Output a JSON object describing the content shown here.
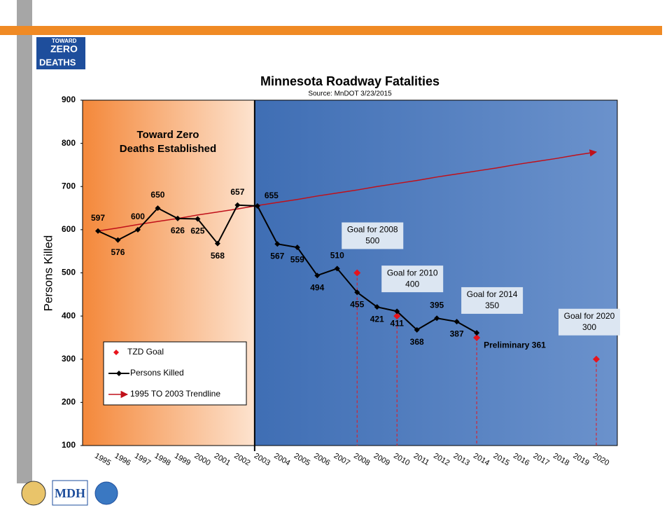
{
  "logo": {
    "line1": "TOWARD",
    "line2": "ZERO",
    "line3": "DEATHS"
  },
  "footer_logo": "MDH",
  "chart_data": {
    "type": "line",
    "title": "Minnesota Roadway Fatalities",
    "subtitle": "Source: MnDOT  3/23/2015",
    "y_label": "Persons Killed",
    "region_label": [
      "Toward Zero",
      "Deaths Established"
    ],
    "categories": [
      "1995",
      "1996",
      "1997",
      "1998",
      "1999",
      "2000",
      "2001",
      "2002",
      "2003",
      "2004",
      "2005",
      "2006",
      "2007",
      "2008",
      "2009",
      "2010",
      "2011",
      "2012",
      "2013",
      "2014",
      "2015",
      "2016",
      "2017",
      "2018",
      "2019",
      "2020"
    ],
    "series": [
      {
        "name": "TZD Goal",
        "color": "#e8141c",
        "kind": "goal",
        "values": [
          null,
          null,
          null,
          null,
          null,
          null,
          null,
          null,
          null,
          null,
          null,
          null,
          null,
          500,
          null,
          400,
          null,
          null,
          null,
          350,
          null,
          null,
          null,
          null,
          null,
          300
        ],
        "annotations": [
          null,
          null,
          null,
          null,
          null,
          null,
          null,
          null,
          null,
          null,
          null,
          null,
          null,
          "Goal for 2008",
          null,
          "Goal for 2010",
          null,
          null,
          null,
          "Goal for 2014",
          null,
          null,
          null,
          null,
          null,
          "Goal for 2020"
        ]
      },
      {
        "name": "Persons Killed",
        "color": "#000000",
        "kind": "line",
        "values": [
          597,
          576,
          600,
          650,
          626,
          625,
          568,
          657,
          655,
          567,
          559,
          494,
          510,
          455,
          421,
          411,
          368,
          395,
          387,
          361,
          null,
          null,
          null,
          null,
          null,
          null
        ],
        "value_labels": [
          "597",
          "576",
          "600",
          "650",
          "626",
          "625",
          "568",
          "657",
          "655",
          "567",
          "559",
          "494",
          "510",
          "455",
          "421",
          "411",
          "368",
          "395",
          "387",
          "Preliminary 361",
          null,
          null,
          null,
          null,
          null,
          null
        ]
      },
      {
        "name": "1995 TO 2003 Trendline",
        "color": "#c0101a",
        "kind": "trend",
        "values": [
          597,
          604,
          612,
          619,
          626,
          634,
          641,
          648,
          656,
          663,
          670,
          678,
          685,
          692,
          700,
          707,
          714,
          722,
          729,
          736,
          743,
          751,
          758,
          765,
          773,
          780
        ]
      }
    ],
    "ylim": [
      100,
      900
    ],
    "yticks": [
      100,
      200,
      300,
      400,
      500,
      600,
      700,
      800,
      900
    ],
    "region_split": "2003"
  }
}
